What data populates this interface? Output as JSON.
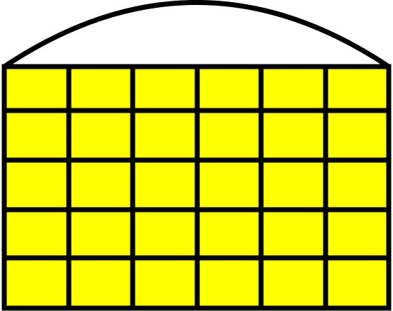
{
  "figure": {
    "shape": "arched-window-grid",
    "grid": {
      "rows": 5,
      "columns": 6,
      "cell_fill": "#ffff00"
    },
    "stroke_color": "#000000",
    "background": "#ffffff"
  }
}
